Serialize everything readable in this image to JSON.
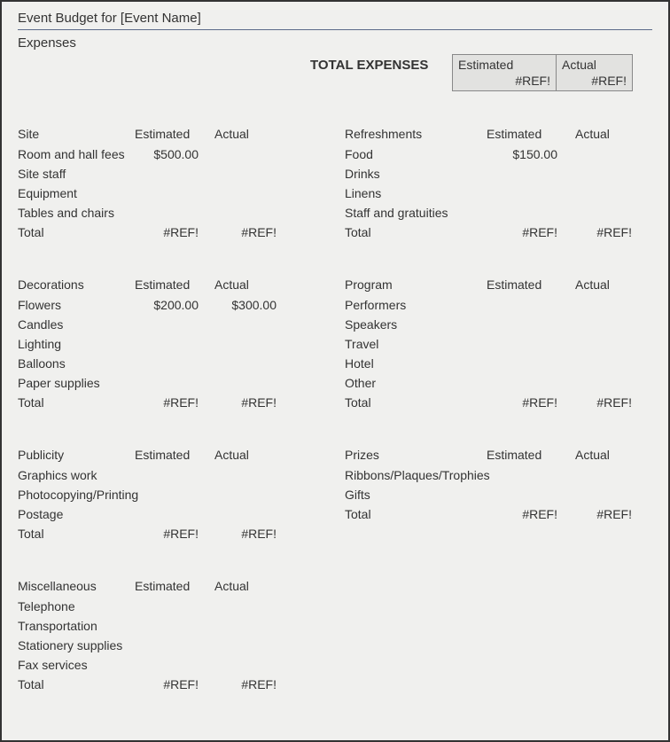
{
  "title": "Event Budget for [Event Name]",
  "subtitle": "Expenses",
  "totals": {
    "label": "TOTAL EXPENSES",
    "estimated_label": "Estimated",
    "actual_label": "Actual",
    "estimated_value": "#REF!",
    "actual_value": "#REF!"
  },
  "headers": {
    "estimated": "Estimated",
    "actual": "Actual",
    "total": "Total"
  },
  "left_sections": [
    {
      "name": "Site",
      "rows": [
        {
          "label": "Room and hall fees",
          "est": "$500.00",
          "act": ""
        },
        {
          "label": "Site staff",
          "est": "",
          "act": ""
        },
        {
          "label": "Equipment",
          "est": "",
          "act": ""
        },
        {
          "label": "Tables and chairs",
          "est": "",
          "act": ""
        }
      ],
      "total_est": "#REF!",
      "total_act": "#REF!"
    },
    {
      "name": "Decorations",
      "rows": [
        {
          "label": "Flowers",
          "est": "$200.00",
          "act": "$300.00"
        },
        {
          "label": "Candles",
          "est": "",
          "act": ""
        },
        {
          "label": "Lighting",
          "est": "",
          "act": ""
        },
        {
          "label": "Balloons",
          "est": "",
          "act": ""
        },
        {
          "label": "Paper supplies",
          "est": "",
          "act": ""
        }
      ],
      "total_est": "#REF!",
      "total_act": "#REF!"
    },
    {
      "name": "Publicity",
      "rows": [
        {
          "label": "Graphics work",
          "est": "",
          "act": ""
        },
        {
          "label": "Photocopying/Printing",
          "est": "",
          "act": ""
        },
        {
          "label": "Postage",
          "est": "",
          "act": ""
        }
      ],
      "total_est": "#REF!",
      "total_act": "#REF!"
    },
    {
      "name": "Miscellaneous",
      "rows": [
        {
          "label": "Telephone",
          "est": "",
          "act": ""
        },
        {
          "label": "Transportation",
          "est": "",
          "act": ""
        },
        {
          "label": "Stationery supplies",
          "est": "",
          "act": ""
        },
        {
          "label": "Fax services",
          "est": "",
          "act": ""
        }
      ],
      "total_est": "#REF!",
      "total_act": "#REF!"
    }
  ],
  "right_sections": [
    {
      "name": "Refreshments",
      "rows": [
        {
          "label": "Food",
          "est": "$150.00",
          "act": ""
        },
        {
          "label": "Drinks",
          "est": "",
          "act": ""
        },
        {
          "label": "Linens",
          "est": "",
          "act": ""
        },
        {
          "label": "Staff and gratuities",
          "est": "",
          "act": ""
        }
      ],
      "total_est": "#REF!",
      "total_act": "#REF!"
    },
    {
      "name": "Program",
      "rows": [
        {
          "label": "Performers",
          "est": "",
          "act": ""
        },
        {
          "label": "Speakers",
          "est": "",
          "act": ""
        },
        {
          "label": "Travel",
          "est": "",
          "act": ""
        },
        {
          "label": "Hotel",
          "est": "",
          "act": ""
        },
        {
          "label": "Other",
          "est": "",
          "act": ""
        }
      ],
      "total_est": "#REF!",
      "total_act": "#REF!"
    },
    {
      "name": "Prizes",
      "rows": [
        {
          "label": "Ribbons/Plaques/Trophies",
          "est": "",
          "act": "",
          "wide": true
        },
        {
          "label": "Gifts",
          "est": "",
          "act": ""
        }
      ],
      "total_est": "#REF!",
      "total_act": "#REF!"
    }
  ]
}
